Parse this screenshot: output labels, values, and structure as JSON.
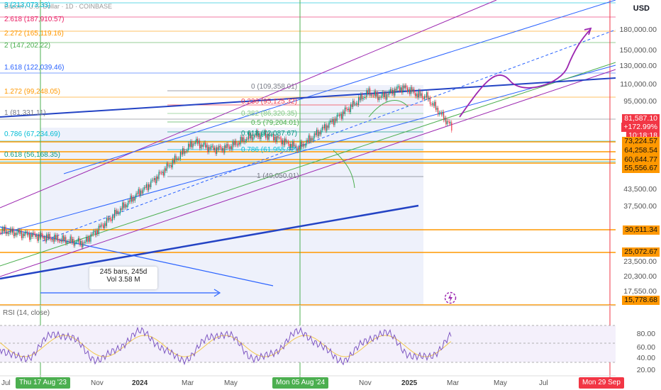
{
  "header": {
    "title": "Bitcoin / U.S. Dollar · 1D · COINBASE",
    "currency": "USD"
  },
  "price_axis": {
    "ticks": [
      "180,000.00",
      "150,000.00",
      "130,000.00",
      "110,000.00",
      "95,000.00",
      "43,500.00",
      "37,500.00",
      "23,500.00",
      "20,300.00",
      "17,550.00"
    ],
    "current_price": "81,587.10",
    "change": "+172.99%",
    "countdown": "10:18:18",
    "level_tags": [
      "73,224.57",
      "64,258.54",
      "60,644.77",
      "55,556.67",
      "30,511.34",
      "25,072.67",
      "15,778.68"
    ]
  },
  "fib_right": [
    {
      "label": "3 (213,073.33)",
      "color": "#00bcd4"
    },
    {
      "label": "2.618 (187,910.57)",
      "color": "#e91e63"
    },
    {
      "label": "2.272 (165,119.16)",
      "color": "#ff9800"
    },
    {
      "label": "2 (147,202.22)",
      "color": "#4caf50"
    },
    {
      "label": "1.618 (122,039.46)",
      "color": "#2962ff"
    },
    {
      "label": "1.272 (99,248.05)",
      "color": "#ff9800"
    },
    {
      "label": "1 (81,331.11)",
      "color": "#787b86"
    },
    {
      "label": "0.786 (67,234.69)",
      "color": "#00bcd4"
    },
    {
      "label": "0.618 (56,168.35)",
      "color": "#089981"
    }
  ],
  "fib_retrace": [
    {
      "label": "0 (109,358.01)",
      "color": "#787b86"
    },
    {
      "label": "0.236 (95,125.32)",
      "color": "#f23645"
    },
    {
      "label": "0.382 (86,320.35)",
      "color": "#81c784"
    },
    {
      "label": "0.5 (79,204.01)",
      "color": "#4caf50"
    },
    {
      "label": "0.618 (72,087.67)",
      "color": "#089981"
    },
    {
      "label": "0.786 (61,955.92)",
      "color": "#00bcd4"
    },
    {
      "label": "1 (49,050.01)",
      "color": "#787b86"
    }
  ],
  "measure": {
    "bars": "245 bars, 245d",
    "volume": "Vol 3.58 M"
  },
  "time_axis": {
    "labels": [
      "Jul",
      "Nov",
      "2024",
      "Mar",
      "May",
      "Nov",
      "2025",
      "Mar",
      "May",
      "Jul"
    ],
    "markers": [
      "Thu 17 Aug '23",
      "Mon 05 Aug '24",
      "Mon 29 Sep"
    ]
  },
  "rsi": {
    "title": "RSI (14, close)",
    "levels": [
      "80.00",
      "60.00",
      "40.00",
      "20.00"
    ]
  }
}
